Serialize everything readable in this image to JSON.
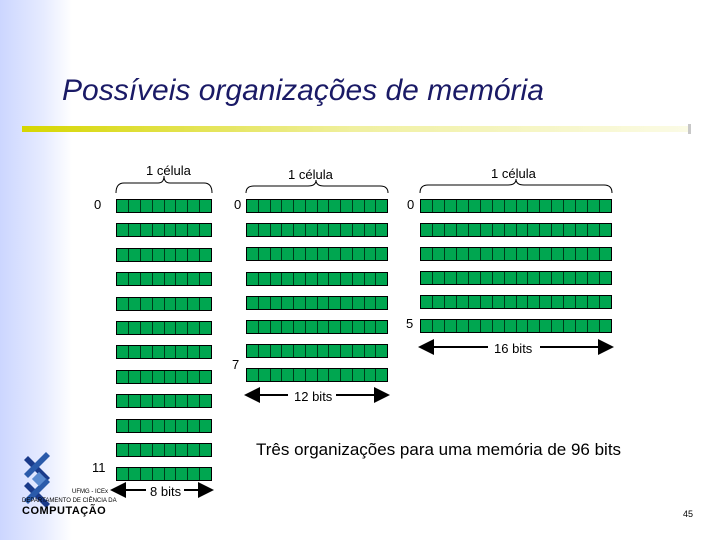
{
  "slide": {
    "title": "Possíveis organizações de memória",
    "caption": "Três organizações para uma memória de 96 bits",
    "page_number": "45"
  },
  "org8": {
    "brace_label": "1 célula",
    "first_index": "0",
    "last_index": "11",
    "width_label": "8 bits",
    "rows": 12,
    "bits_per_row": 8
  },
  "org12": {
    "brace_label": "1 célula",
    "first_index": "0",
    "last_index": "7",
    "width_label": "12 bits",
    "rows": 8,
    "bits_per_row": 12
  },
  "org16": {
    "brace_label": "1 célula",
    "first_index": "0",
    "last_index": "5",
    "width_label": "16 bits",
    "rows": 6,
    "bits_per_row": 16
  },
  "logo": {
    "line1": "UFMG - ICEx",
    "line2": "DEPARTAMENTO DE CIÊNCIA DA",
    "line3": "COMPUTAÇÃO"
  },
  "colors": {
    "cell": "#00a650",
    "title": "#1a1a66",
    "rule": "#d6d600"
  }
}
